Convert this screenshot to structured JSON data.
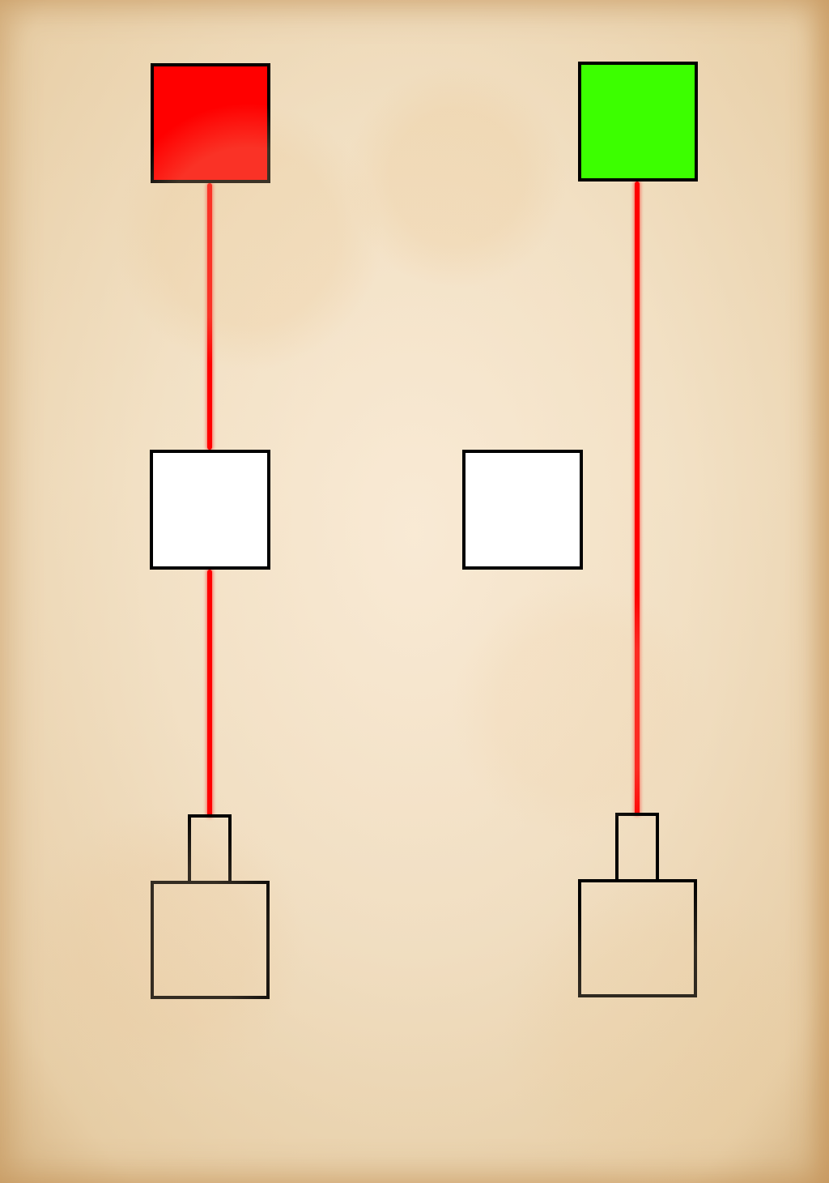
{
  "colors": {
    "paper": "#f1dfc2",
    "wire": "#ff0000",
    "outline": "#000000",
    "relay_fill": "#ffffff"
  },
  "sources": [
    {
      "id": "left",
      "color": "#ff0000",
      "icon": "red-square-source"
    },
    {
      "id": "right",
      "color": "#3cff00",
      "icon": "green-square-source"
    }
  ],
  "relays": [
    {
      "id": "left",
      "state": "empty"
    },
    {
      "id": "middle",
      "state": "empty"
    }
  ],
  "receivers": [
    {
      "id": "left",
      "state": "empty",
      "connected": true
    },
    {
      "id": "right",
      "state": "empty",
      "connected": true
    }
  ],
  "wires": [
    {
      "from": "source-left",
      "to": "relay-left",
      "color": "#ff0000"
    },
    {
      "from": "relay-left",
      "to": "receiver-left",
      "color": "#ff0000"
    },
    {
      "from": "source-right",
      "to": "receiver-right",
      "color": "#ff0000"
    }
  ]
}
